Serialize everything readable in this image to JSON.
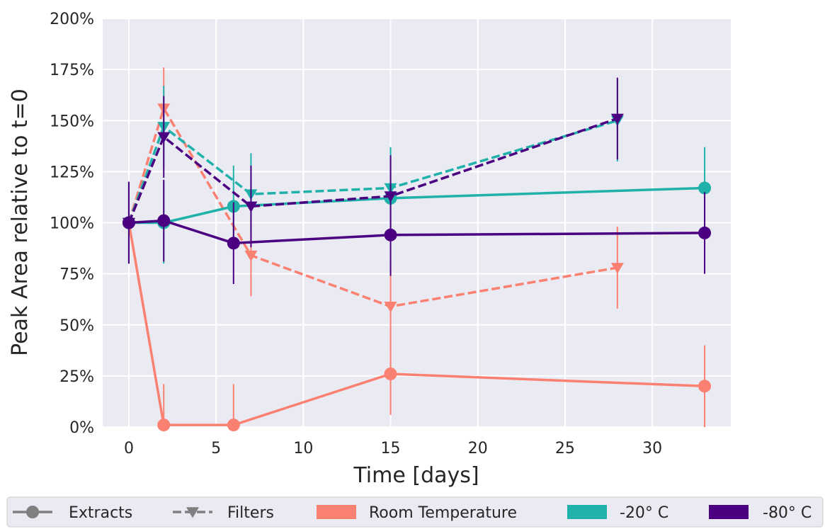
{
  "chart_data": {
    "type": "line",
    "xlabel": "Time [days]",
    "ylabel": "Peak Area relative to t=0",
    "xlim": [
      -1.5,
      34.5
    ],
    "ylim": [
      0,
      200
    ],
    "xticks": [
      0,
      5,
      10,
      15,
      20,
      25,
      30
    ],
    "xtick_labels": [
      "0",
      "5",
      "10",
      "15",
      "20",
      "25",
      "30"
    ],
    "yticks": [
      0,
      25,
      50,
      75,
      100,
      125,
      150,
      175,
      200
    ],
    "ytick_labels": [
      "0%",
      "25%",
      "50%",
      "75%",
      "100%",
      "125%",
      "150%",
      "175%",
      "200%"
    ],
    "grid": true,
    "background": "#eaeaf2",
    "legend_position": "bottom",
    "series": [
      {
        "condition": "room",
        "type": "extracts",
        "color": "#fa8072",
        "x": [
          0,
          2,
          6,
          15,
          33
        ],
        "y": [
          100,
          1,
          1,
          26,
          20
        ],
        "err": [
          20,
          20,
          20,
          20,
          20
        ]
      },
      {
        "condition": "room",
        "type": "filters",
        "color": "#fa8072",
        "x": [
          0,
          2,
          7,
          15,
          28
        ],
        "y": [
          100,
          156,
          84,
          59,
          78
        ],
        "err": [
          20,
          20,
          20,
          20,
          20
        ]
      },
      {
        "condition": "minus20",
        "type": "extracts",
        "color": "#20b2aa",
        "x": [
          0,
          2,
          6,
          15,
          33
        ],
        "y": [
          100,
          100,
          108,
          112,
          117
        ],
        "err": [
          20,
          20,
          20,
          20,
          20
        ]
      },
      {
        "condition": "minus20",
        "type": "filters",
        "color": "#20b2aa",
        "x": [
          0,
          2,
          7,
          15,
          28
        ],
        "y": [
          100,
          147,
          114,
          117,
          150
        ],
        "err": [
          20,
          20,
          20,
          20,
          20
        ]
      },
      {
        "condition": "minus80",
        "type": "extracts",
        "color": "#4b0082",
        "x": [
          0,
          2,
          6,
          15,
          33
        ],
        "y": [
          100,
          101,
          90,
          94,
          95
        ],
        "err": [
          20,
          20,
          20,
          20,
          20
        ]
      },
      {
        "condition": "minus80",
        "type": "filters",
        "color": "#4b0082",
        "x": [
          0,
          2,
          7,
          15,
          28
        ],
        "y": [
          100,
          142,
          108,
          113,
          151
        ],
        "err": [
          20,
          20,
          20,
          20,
          20
        ]
      }
    ]
  },
  "legend": {
    "items": [
      {
        "label": "Extracts",
        "kind": "line-marker",
        "marker": "circle",
        "dash": false,
        "color": "#808080"
      },
      {
        "label": "Filters",
        "kind": "line-marker",
        "marker": "triangle-down",
        "dash": true,
        "color": "#808080"
      },
      {
        "label": "Room Temperature",
        "kind": "patch",
        "color": "#fa8072"
      },
      {
        "label": "-20° C",
        "kind": "patch",
        "color": "#20b2aa"
      },
      {
        "label": "-80° C",
        "kind": "patch",
        "color": "#4b0082"
      }
    ]
  }
}
